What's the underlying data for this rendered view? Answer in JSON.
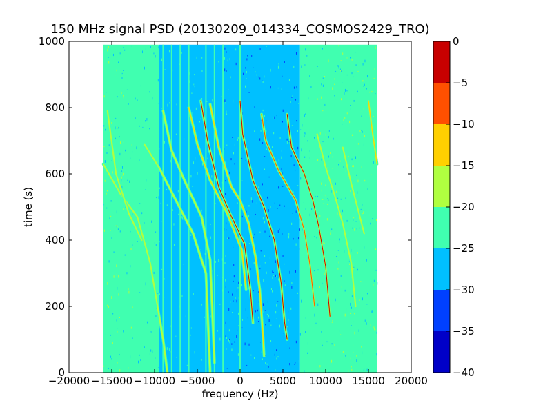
{
  "chart_data": {
    "type": "heatmap",
    "title": "150 MHz signal PSD (20130209_014334_COSMOS2429_TRO)",
    "xlabel": "frequency (Hz)",
    "ylabel": "time (s)",
    "xlim": [
      -20000,
      20000
    ],
    "ylim": [
      0,
      1000
    ],
    "x_ticks": [
      -20000,
      -15000,
      -10000,
      -5000,
      0,
      5000,
      10000,
      15000,
      20000
    ],
    "x_tick_labels": [
      "−20000",
      "−15000",
      "−10000",
      "−5000",
      "0",
      "5000",
      "10000",
      "15000",
      "20000"
    ],
    "y_ticks": [
      0,
      200,
      400,
      600,
      800,
      1000
    ],
    "y_tick_labels": [
      "0",
      "200",
      "400",
      "600",
      "800",
      "1000"
    ],
    "data_extent": {
      "x": [
        -16000,
        16000
      ],
      "y": [
        0,
        990
      ]
    },
    "background_levels": [
      {
        "x": [
          -16000,
          -12500
        ],
        "value": -22.5
      },
      {
        "x": [
          -12500,
          -9500
        ],
        "value": -25
      },
      {
        "x": [
          -9500,
          -2000
        ],
        "value": -27
      },
      {
        "x": [
          -2000,
          7000
        ],
        "value": -27.5
      },
      {
        "x": [
          7000,
          9000
        ],
        "value": -25
      },
      {
        "x": [
          9000,
          16000
        ],
        "value": -22.5
      }
    ],
    "vertical_lines_hz": [
      -9000,
      -8000,
      -7000,
      -6000,
      -4000,
      -3000,
      -2000,
      0,
      15000
    ],
    "tracks": [
      {
        "name": "",
        "points": [
          [
            -16000,
            630
          ],
          [
            -14000,
            540
          ],
          [
            -12000,
            470
          ],
          [
            -10500,
            330
          ],
          [
            -9000,
            100
          ],
          [
            -8500,
            0
          ]
        ],
        "peak": -17
      },
      {
        "name": "",
        "points": [
          [
            -15500,
            790
          ],
          [
            -14500,
            600
          ],
          [
            -13000,
            480
          ],
          [
            -11500,
            400
          ]
        ],
        "peak": -18
      },
      {
        "name": "",
        "points": [
          [
            -11200,
            690
          ],
          [
            -9500,
            620
          ],
          [
            -7500,
            520
          ],
          [
            -5500,
            420
          ],
          [
            -4000,
            300
          ],
          [
            -3500,
            0
          ]
        ],
        "peak": -20
      },
      {
        "name": "",
        "points": [
          [
            -9000,
            790
          ],
          [
            -8000,
            670
          ],
          [
            -6500,
            580
          ],
          [
            -4500,
            470
          ],
          [
            -3500,
            340
          ],
          [
            -3000,
            30
          ]
        ],
        "peak": -18
      },
      {
        "name": "",
        "points": [
          [
            -6000,
            800
          ],
          [
            -5000,
            690
          ],
          [
            -3500,
            580
          ],
          [
            -1500,
            480
          ],
          [
            200,
            370
          ],
          [
            700,
            250
          ]
        ],
        "peak": -15
      },
      {
        "name": "",
        "points": [
          [
            -4600,
            820
          ],
          [
            -3800,
            700
          ],
          [
            -2500,
            560
          ],
          [
            -1000,
            470
          ],
          [
            500,
            390
          ],
          [
            1200,
            250
          ],
          [
            1500,
            150
          ]
        ],
        "peak": -3
      },
      {
        "name": "",
        "points": [
          [
            -3500,
            810
          ],
          [
            -2500,
            680
          ],
          [
            -1000,
            560
          ],
          [
            0,
            520
          ],
          [
            1000,
            450
          ],
          [
            1800,
            350
          ],
          [
            2300,
            250
          ],
          [
            2700,
            100
          ],
          [
            2800,
            50
          ]
        ],
        "peak": -12
      },
      {
        "name": "",
        "points": [
          [
            0,
            820
          ],
          [
            300,
            720
          ],
          [
            1500,
            580
          ],
          [
            2800,
            500
          ],
          [
            4000,
            400
          ],
          [
            4800,
            270
          ],
          [
            5200,
            150
          ],
          [
            5500,
            100
          ]
        ],
        "peak": -2
      },
      {
        "name": "",
        "points": [
          [
            2500,
            780
          ],
          [
            3000,
            700
          ],
          [
            4500,
            610
          ],
          [
            6500,
            520
          ],
          [
            7500,
            430
          ],
          [
            8200,
            320
          ],
          [
            8700,
            200
          ]
        ],
        "peak": -8
      },
      {
        "name": "",
        "points": [
          [
            5500,
            780
          ],
          [
            6000,
            680
          ],
          [
            7500,
            600
          ],
          [
            8500,
            520
          ],
          [
            9200,
            440
          ],
          [
            10000,
            320
          ],
          [
            10500,
            170
          ]
        ],
        "peak": -3
      },
      {
        "name": "",
        "points": [
          [
            9000,
            720
          ],
          [
            10000,
            620
          ],
          [
            11000,
            540
          ],
          [
            12000,
            450
          ],
          [
            13000,
            330
          ],
          [
            13500,
            200
          ]
        ],
        "peak": -18
      },
      {
        "name": "",
        "points": [
          [
            12000,
            680
          ],
          [
            13000,
            570
          ],
          [
            14000,
            470
          ],
          [
            14500,
            420
          ]
        ],
        "peak": -20
      },
      {
        "name": "",
        "points": [
          [
            15000,
            820
          ],
          [
            15500,
            720
          ],
          [
            16000,
            630
          ]
        ],
        "peak": -15
      }
    ],
    "colorbar": {
      "levels": [
        -40,
        -35,
        -30,
        -25,
        -20,
        -15,
        -10,
        -5,
        0
      ],
      "tick_labels": [
        "−40",
        "−35",
        "−30",
        "−25",
        "−20",
        "−15",
        "−10",
        "−5",
        "0"
      ],
      "colors": [
        "#0000c8",
        "#0040ff",
        "#00c0ff",
        "#40ffb0",
        "#b0ff40",
        "#ffd000",
        "#ff5000",
        "#c80000"
      ]
    }
  }
}
